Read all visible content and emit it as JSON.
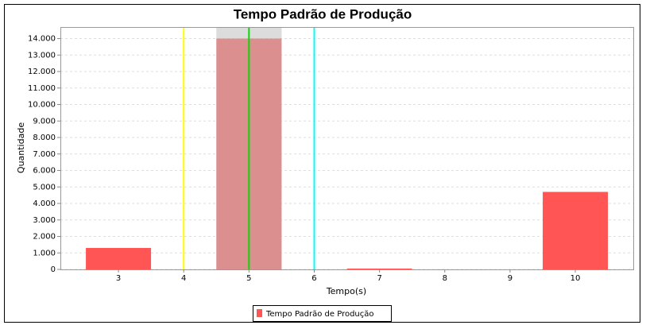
{
  "chart_data": {
    "type": "bar",
    "title": "Tempo Padrão de Produção",
    "x_label": "Tempo(s)",
    "y_label": "Quantidade",
    "categories": [
      "3",
      "4",
      "5",
      "6",
      "7",
      "8",
      "9",
      "10"
    ],
    "series": [
      {
        "name": "Tempo Padrão de Produção",
        "color": "#ff5555",
        "values": [
          1300,
          0,
          14000,
          0,
          50,
          0,
          0,
          4700
        ]
      }
    ],
    "ylim": [
      0,
      14700
    ],
    "yticks": [
      0,
      {
        "value": 1000,
        "label": "1.000"
      },
      {
        "value": 2000,
        "label": "2.000"
      },
      {
        "value": 3000,
        "label": "3.000"
      },
      {
        "value": 4000,
        "label": "4.000"
      },
      {
        "value": 5000,
        "label": "5.000"
      },
      {
        "value": 6000,
        "label": "6.000"
      },
      {
        "value": 7000,
        "label": "7.000"
      },
      {
        "value": 8000,
        "label": "8.000"
      },
      {
        "value": 9000,
        "label": "9.000"
      },
      {
        "value": 10000,
        "label": "10.000"
      },
      {
        "value": 11000,
        "label": "11.000"
      },
      {
        "value": 12000,
        "label": "12.000"
      },
      {
        "value": 13000,
        "label": "13.000"
      },
      {
        "value": 14000,
        "label": "14.000"
      }
    ],
    "grid": true,
    "legend": "bottom",
    "markers": [
      {
        "at": "4",
        "color": "#ffff00"
      },
      {
        "at": "5",
        "color": "#00dd00"
      },
      {
        "at": "6",
        "color": "#00ffff"
      }
    ],
    "highlight": {
      "at": "5",
      "color": "#c0c0c0"
    }
  }
}
